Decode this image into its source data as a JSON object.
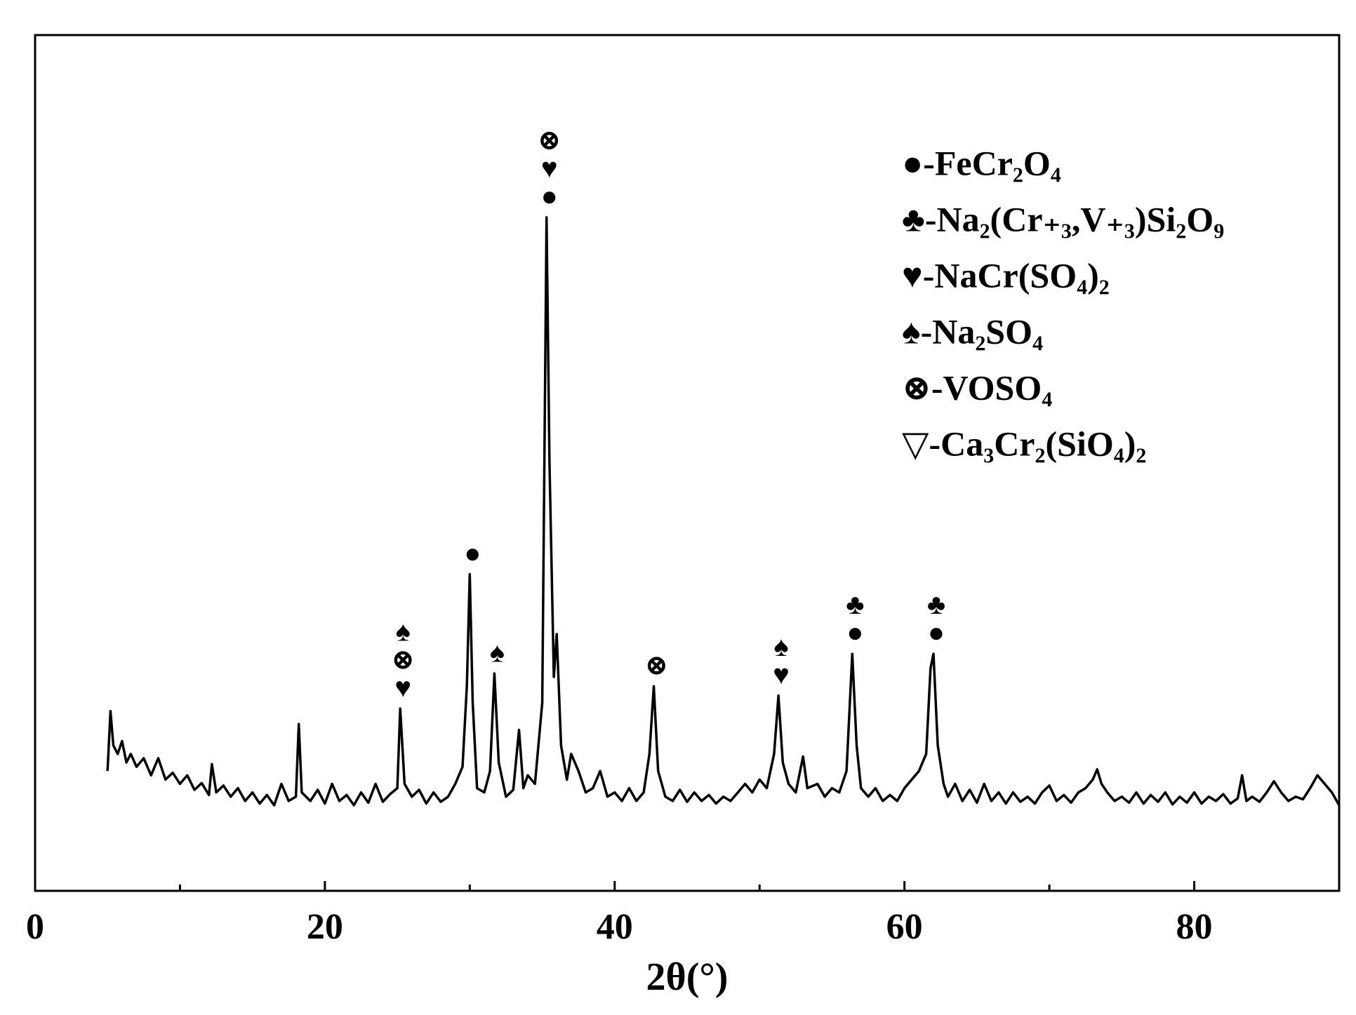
{
  "chart_data": {
    "type": "line",
    "xlabel": "2θ(°)",
    "xlim": [
      0,
      90
    ],
    "ylim": [
      0,
      100
    ],
    "xticks": [
      0,
      20,
      40,
      60,
      80
    ],
    "xminorticks": [
      10,
      30,
      50,
      70
    ],
    "color": "#000000",
    "x": [
      5,
      5.2,
      5.4,
      5.7,
      6,
      6.3,
      6.6,
      7,
      7.5,
      8,
      8.5,
      9,
      9.5,
      10,
      10.5,
      11,
      11.5,
      12,
      12.2,
      12.5,
      13,
      13.5,
      14,
      14.5,
      15,
      15.5,
      16,
      16.5,
      17,
      17.5,
      18,
      18.2,
      18.4,
      19,
      19.5,
      20,
      20.5,
      21,
      21.5,
      22,
      22.5,
      23,
      23.5,
      24,
      24.5,
      25,
      25.2,
      25.5,
      26,
      26.5,
      27,
      27.5,
      28,
      28.5,
      29,
      29.5,
      29.8,
      30,
      30.2,
      30.5,
      31,
      31.4,
      31.7,
      32,
      32.5,
      33,
      33.4,
      33.7,
      34,
      34.5,
      35,
      35.2,
      35.3,
      35.5,
      35.8,
      36,
      36.3,
      36.7,
      37,
      37.5,
      38,
      38.5,
      39,
      39.5,
      40,
      40.5,
      41,
      41.5,
      42,
      42.4,
      42.7,
      43,
      43.5,
      44,
      44.5,
      45,
      45.5,
      46,
      46.5,
      47,
      47.5,
      48,
      48.5,
      49,
      49.5,
      50,
      50.5,
      51,
      51.3,
      51.6,
      52,
      52.5,
      53,
      53.3,
      54,
      54.5,
      55,
      55.5,
      56,
      56.4,
      56.7,
      57,
      57.5,
      58,
      58.5,
      59,
      59.5,
      60,
      60.5,
      61,
      61.5,
      61.8,
      62,
      62.3,
      62.7,
      63,
      63.5,
      64,
      64.5,
      65,
      65.5,
      66,
      66.5,
      67,
      67.5,
      68,
      68.5,
      69,
      69.5,
      70,
      70.5,
      71,
      71.5,
      72,
      72.5,
      73,
      73.3,
      73.6,
      74,
      74.5,
      75,
      75.5,
      76,
      76.5,
      77,
      77.5,
      78,
      78.5,
      79,
      79.5,
      80,
      80.5,
      81,
      81.5,
      82,
      82.5,
      83,
      83.3,
      83.6,
      84,
      84.5,
      85,
      85.5,
      86,
      86.5,
      87,
      87.5,
      88,
      88.5,
      89,
      89.5,
      90
    ],
    "values": [
      14,
      21,
      17,
      16,
      17.5,
      15,
      16,
      14.5,
      15.5,
      13.5,
      15.5,
      13,
      13.8,
      12.5,
      13.5,
      11.8,
      12.6,
      11.2,
      14.8,
      11.5,
      12.3,
      11,
      12,
      10.5,
      11.5,
      10.2,
      11.2,
      10,
      12.5,
      10.5,
      11,
      19.5,
      11.5,
      10.5,
      11.8,
      10.2,
      12.5,
      10.5,
      11.2,
      10,
      11.5,
      10.3,
      12.5,
      10.4,
      11.3,
      12,
      21.3,
      12.5,
      11,
      11.8,
      10.2,
      11.5,
      10.4,
      11,
      12.5,
      14.5,
      24,
      37,
      22,
      12,
      11.5,
      14,
      25.4,
      15,
      11,
      11.8,
      18.8,
      12,
      13.5,
      12.5,
      22,
      60,
      78.7,
      50,
      25,
      30,
      17,
      13,
      16,
      14,
      11.5,
      12,
      14,
      11,
      11.5,
      10.5,
      12,
      10.5,
      11.5,
      16,
      23.9,
      14,
      11,
      10.5,
      11.8,
      10.4,
      11.5,
      10.5,
      11.2,
      10.2,
      11,
      10.5,
      11.5,
      12.5,
      11.5,
      13,
      12,
      16,
      22.8,
      15,
      12.5,
      11.5,
      15.7,
      12,
      12.5,
      11,
      12,
      11.5,
      14,
      27.7,
      17,
      12,
      11,
      12,
      10.5,
      11.2,
      10.5,
      12,
      13,
      14,
      16,
      26,
      27.7,
      17,
      12.5,
      11,
      12.5,
      10.5,
      11.8,
      10.3,
      12.5,
      10.5,
      11.5,
      10.2,
      11.5,
      10.4,
      11,
      10.2,
      11.5,
      12.3,
      10.5,
      11.2,
      10.3,
      11.5,
      12,
      13,
      14.2,
      12.5,
      11.5,
      10.5,
      11,
      10.3,
      11.5,
      10.2,
      11.2,
      10.4,
      11.5,
      10.1,
      11,
      10.3,
      11.5,
      10.2,
      11,
      10.5,
      11.3,
      10.2,
      10.8,
      13.5,
      10.5,
      11,
      10.4,
      11.5,
      12.8,
      11.5,
      10.5,
      11,
      10.7,
      12,
      13.5,
      12.5,
      11.5,
      10
    ],
    "annotations": [
      {
        "x": 25.2,
        "text": [
          "♠",
          "⊗",
          "♥"
        ]
      },
      {
        "x": 30,
        "text": [
          "●"
        ]
      },
      {
        "x": 31.7,
        "text": [
          "♠"
        ]
      },
      {
        "x": 35.3,
        "text": [
          "⊗",
          "♥",
          "●"
        ]
      },
      {
        "x": 42.7,
        "text": [
          "⊗"
        ]
      },
      {
        "x": 51.3,
        "text": [
          "♠",
          "♥"
        ]
      },
      {
        "x": 56.4,
        "text": [
          "♣",
          "●"
        ]
      },
      {
        "x": 62,
        "text": [
          "♣",
          "●"
        ]
      }
    ],
    "legend": [
      "●-FeCr₂O₄",
      "♣-Na₂(Cr₊₃,V₊₃)Si₂O₉",
      "♥-NaCr(SO₄)₂",
      "♠-Na₂SO₄",
      "⊗-VOSO₄",
      "▽-Ca₃Cr₂(SiO₄)₂"
    ]
  }
}
